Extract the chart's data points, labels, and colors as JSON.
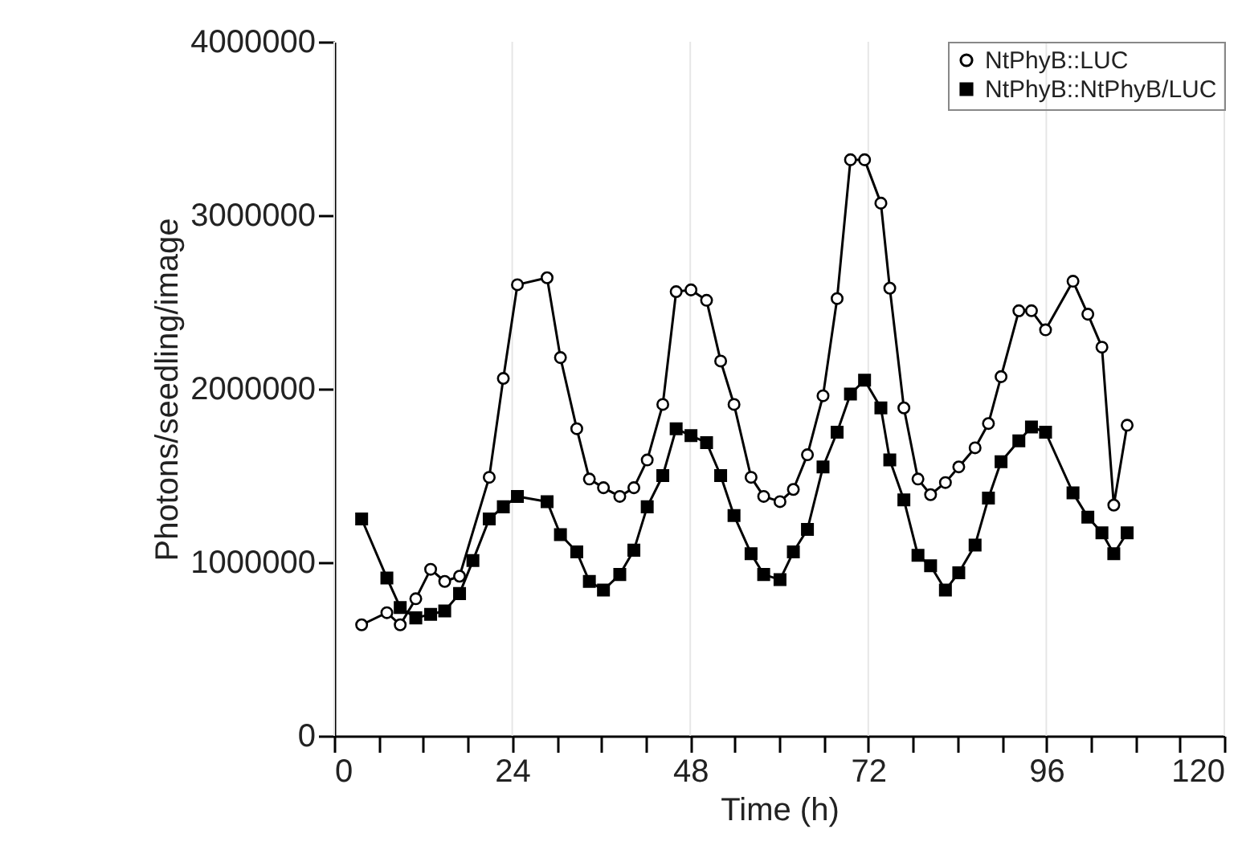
{
  "chart_data": {
    "type": "line",
    "xlabel": "Time (h)",
    "ylabel": "Photons/seedling/image",
    "x": [
      3.7,
      7.1,
      8.9,
      11.0,
      13.0,
      14.9,
      16.9,
      18.7,
      20.9,
      22.8,
      24.7,
      28.7,
      30.5,
      32.7,
      34.4,
      36.3,
      38.5,
      40.4,
      42.2,
      44.3,
      46.1,
      48.1,
      50.2,
      52.1,
      53.9,
      56.2,
      57.9,
      60.1,
      61.9,
      63.8,
      65.9,
      67.8,
      69.6,
      71.5,
      73.7,
      74.9,
      76.8,
      78.7,
      80.4,
      82.4,
      84.2,
      86.4,
      88.2,
      89.9,
      92.3,
      94.0,
      95.9,
      99.6,
      101.6,
      103.5,
      105.1,
      106.9
    ],
    "series": [
      {
        "name": "NtPhyB::LUC",
        "color": "#000000",
        "marker": "circle",
        "values": [
          640000,
          710000,
          640000,
          790000,
          960000,
          890000,
          920000,
          null,
          1490000,
          2060000,
          2600000,
          2640000,
          2180000,
          1770000,
          1480000,
          1430000,
          1380000,
          1430000,
          1590000,
          1910000,
          2560000,
          2570000,
          2510000,
          2160000,
          1910000,
          1490000,
          1380000,
          1350000,
          1420000,
          1620000,
          1960000,
          2520000,
          3320000,
          3320000,
          3070000,
          2580000,
          1890000,
          1480000,
          1390000,
          1460000,
          1550000,
          1660000,
          1800000,
          2070000,
          2450000,
          2450000,
          2340000,
          2620000,
          2430000,
          2240000,
          1330000,
          1790000
        ]
      },
      {
        "name": "NtPhyB::NtPhyB/LUC",
        "color": "#000000",
        "marker": "square",
        "values": [
          1250000,
          910000,
          740000,
          680000,
          700000,
          720000,
          820000,
          1010000,
          1250000,
          1320000,
          1380000,
          1350000,
          1160000,
          1060000,
          890000,
          840000,
          930000,
          1070000,
          1320000,
          1500000,
          1770000,
          1730000,
          1690000,
          1500000,
          1270000,
          1050000,
          930000,
          900000,
          1060000,
          1190000,
          1550000,
          1750000,
          1970000,
          2050000,
          1890000,
          1590000,
          1360000,
          1040000,
          980000,
          840000,
          940000,
          1100000,
          1370000,
          1580000,
          1700000,
          1780000,
          1750000,
          1400000,
          1260000,
          1170000,
          1050000,
          1170000
        ]
      }
    ],
    "xlim": [
      0,
      120
    ],
    "xticks": [
      0,
      {
        "value": 6,
        "label": null
      },
      {
        "value": 12,
        "label": null
      },
      {
        "value": 18,
        "label": null
      },
      24,
      {
        "value": 30,
        "label": null
      },
      {
        "value": 36,
        "label": null
      },
      {
        "value": 42,
        "label": null
      },
      48,
      {
        "value": 54,
        "label": null
      },
      {
        "value": 60,
        "label": null
      },
      {
        "value": 66,
        "label": null
      },
      72,
      {
        "value": 78,
        "label": null
      },
      {
        "value": 84,
        "label": null
      },
      {
        "value": 90,
        "label": null
      },
      96,
      {
        "value": 102,
        "label": null
      },
      {
        "value": 108,
        "label": null
      },
      {
        "value": 114,
        "label": null
      },
      120
    ],
    "ylim": [
      0,
      4000000
    ],
    "yticks": [
      0,
      1000000,
      2000000,
      3000000,
      4000000
    ],
    "grid": "x",
    "legend": "top right",
    "line_style": "solid"
  }
}
